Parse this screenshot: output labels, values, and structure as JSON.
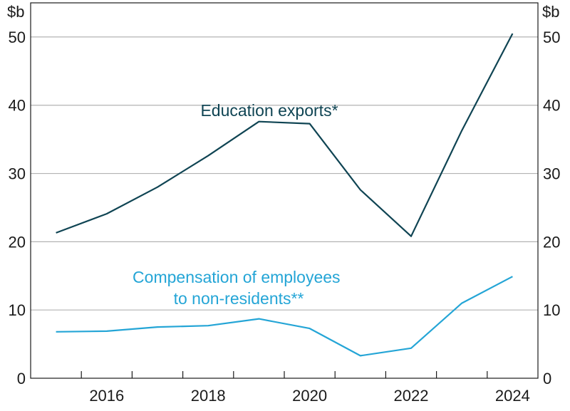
{
  "chart_data": {
    "type": "line",
    "title": "",
    "y_unit_left": "$b",
    "y_unit_right": "$b",
    "xlabel": "",
    "ylabel": "",
    "ylim": [
      0,
      55
    ],
    "xlim": [
      2014.5,
      2024.5
    ],
    "y_ticks": [
      0,
      10,
      20,
      30,
      40,
      50
    ],
    "x_ticks": [
      2016,
      2018,
      2020,
      2022,
      2024
    ],
    "grid": true,
    "series": [
      {
        "label_lines": [
          "Education exports*"
        ],
        "color": "#0f4453",
        "points": [
          [
            2015.0,
            21.3
          ],
          [
            2016.0,
            24.1
          ],
          [
            2017.0,
            28.0
          ],
          [
            2018.0,
            32.6
          ],
          [
            2019.0,
            37.6
          ],
          [
            2020.0,
            37.3
          ],
          [
            2021.0,
            27.6
          ],
          [
            2022.0,
            20.8
          ],
          [
            2023.0,
            36.3
          ],
          [
            2024.0,
            50.5
          ]
        ]
      },
      {
        "label_lines": [
          "Compensation of employees",
          "to non-residents**"
        ],
        "color": "#24a5d6",
        "points": [
          [
            2015.0,
            6.8
          ],
          [
            2016.0,
            6.9
          ],
          [
            2017.0,
            7.5
          ],
          [
            2018.0,
            7.7
          ],
          [
            2019.0,
            8.7
          ],
          [
            2020.0,
            7.3
          ],
          [
            2021.0,
            3.3
          ],
          [
            2022.0,
            4.4
          ],
          [
            2023.0,
            11.0
          ],
          [
            2024.0,
            14.9
          ]
        ]
      }
    ]
  }
}
